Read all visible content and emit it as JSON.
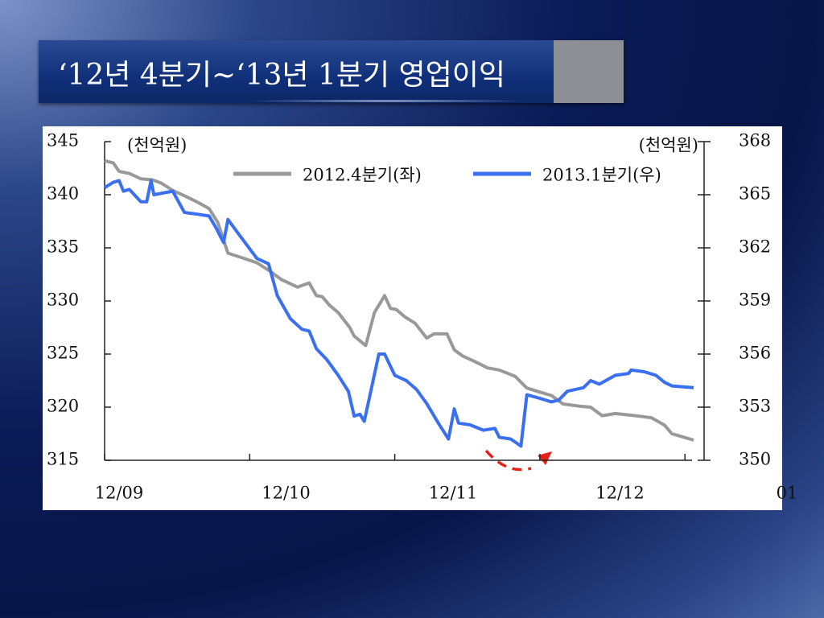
{
  "chart_data": {
    "type": "line",
    "title": "‘12년 4분기~‘13년 1분기 영업이익",
    "y_label": "(천억원)",
    "y2_label": "(천억원)",
    "xlim": [
      0,
      4.06
    ],
    "xticks": [
      {
        "value": 0,
        "label": "12/09"
      },
      {
        "value": 1,
        "label": "12/10"
      },
      {
        "value": 2,
        "label": "12/11"
      },
      {
        "value": 3,
        "label": "12/12"
      },
      {
        "value": 4,
        "label": "01"
      }
    ],
    "ylim": [
      315,
      345
    ],
    "yticks": [
      315,
      320,
      325,
      330,
      335,
      340,
      345
    ],
    "y2lim": [
      350,
      368
    ],
    "y2ticks": [
      350,
      353,
      356,
      359,
      362,
      365,
      368
    ],
    "series": [
      {
        "name": "2012.4분기(좌)",
        "color": "#999999",
        "axis": "y",
        "x": [
          0,
          0.06,
          0.1,
          0.17,
          0.25,
          0.33,
          0.39,
          0.47,
          0.55,
          0.64,
          0.72,
          0.78,
          0.85,
          0.94,
          1.05,
          1.14,
          1.22,
          1.33,
          1.41,
          1.46,
          1.5,
          1.55,
          1.61,
          1.69,
          1.72,
          1.8,
          1.86,
          1.93,
          1.97,
          2.01,
          2.07,
          2.14,
          2.22,
          2.27,
          2.36,
          2.41,
          2.47,
          2.55,
          2.64,
          2.72,
          2.83,
          2.91,
          2.98,
          3.08,
          3.16,
          3.27,
          3.35,
          3.43,
          3.52,
          3.66,
          3.77,
          3.86,
          3.91,
          4.06
        ],
        "values": [
          343.2,
          343.0,
          342.2,
          342.0,
          341.5,
          341.4,
          341.1,
          340.4,
          339.9,
          339.3,
          338.7,
          337.4,
          334.5,
          334.1,
          333.6,
          332.8,
          332.0,
          331.3,
          331.7,
          330.5,
          330.4,
          329.6,
          328.9,
          327.5,
          326.7,
          325.8,
          328.9,
          330.5,
          329.3,
          329.2,
          328.5,
          327.9,
          326.5,
          326.9,
          326.9,
          325.4,
          324.8,
          324.3,
          323.7,
          323.5,
          322.9,
          321.8,
          321.5,
          321.1,
          320.3,
          320.1,
          320.0,
          319.2,
          319.4,
          319.2,
          319.0,
          318.3,
          317.5,
          316.9
        ]
      },
      {
        "name": "2013.1분기(우)",
        "color": "#3a6ff0",
        "axis": "y2",
        "x": [
          0,
          0.06,
          0.1,
          0.13,
          0.17,
          0.25,
          0.29,
          0.32,
          0.34,
          0.47,
          0.55,
          0.64,
          0.72,
          0.77,
          0.82,
          0.85,
          0.94,
          1.05,
          1.13,
          1.19,
          1.28,
          1.36,
          1.41,
          1.46,
          1.53,
          1.61,
          1.68,
          1.72,
          1.76,
          1.79,
          1.89,
          1.93,
          2.0,
          2.08,
          2.15,
          2.22,
          2.3,
          2.37,
          2.41,
          2.44,
          2.52,
          2.61,
          2.69,
          2.72,
          2.8,
          2.87,
          2.91,
          3.0,
          3.08,
          3.13,
          3.19,
          3.3,
          3.35,
          3.41,
          3.52,
          3.61,
          3.63,
          3.72,
          3.8,
          3.86,
          3.91,
          4.06
        ],
        "values": [
          365.4,
          365.7,
          365.8,
          365.2,
          365.3,
          364.6,
          364.6,
          365.8,
          365.0,
          365.2,
          364.0,
          363.9,
          363.8,
          363.1,
          362.3,
          363.6,
          362.6,
          361.4,
          361.1,
          359.3,
          358.0,
          357.4,
          357.3,
          356.3,
          355.7,
          354.8,
          353.9,
          352.5,
          352.6,
          352.2,
          356.0,
          356.0,
          354.8,
          354.5,
          354.0,
          353.2,
          352.1,
          351.2,
          352.9,
          352.1,
          352.0,
          351.7,
          351.8,
          351.3,
          351.2,
          350.8,
          353.7,
          353.5,
          353.3,
          353.4,
          353.9,
          354.1,
          354.5,
          354.3,
          354.8,
          354.9,
          355.1,
          355.0,
          354.8,
          354.4,
          354.2,
          354.1
        ]
      }
    ]
  }
}
